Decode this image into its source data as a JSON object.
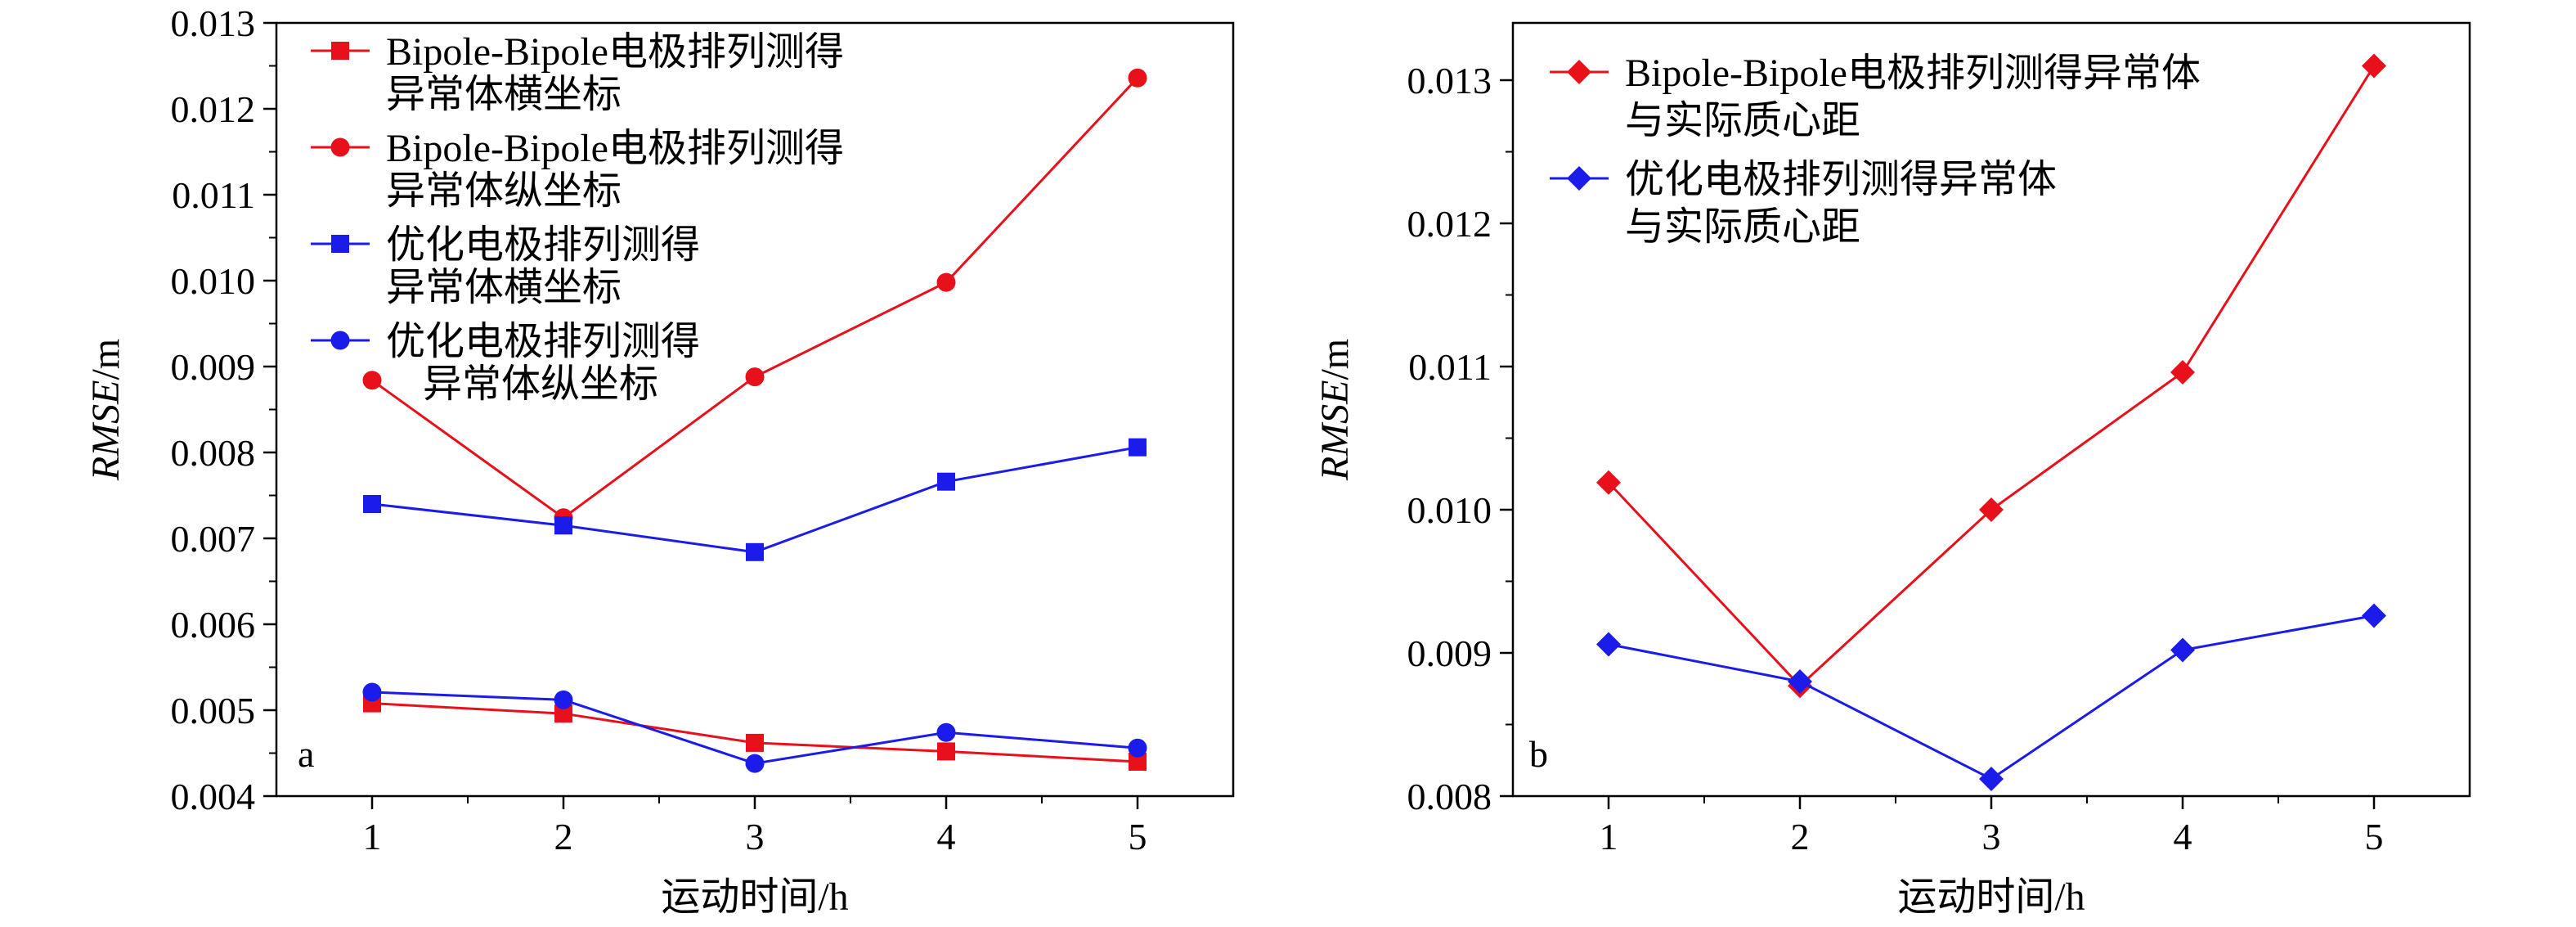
{
  "chart_data": [
    {
      "type": "line",
      "panel_label": "a",
      "xlabel": "运动时间/h",
      "ylabel_italic": "RMSE",
      "ylabel_unit": "/m",
      "x": [
        1,
        2,
        3,
        4,
        5
      ],
      "xlim": [
        0.5,
        5.5
      ],
      "ylim": [
        0.004,
        0.013
      ],
      "xticks": [
        1,
        2,
        3,
        4,
        5
      ],
      "yticks": [
        "0.004",
        "0.005",
        "0.006",
        "0.007",
        "0.008",
        "0.009",
        "0.010",
        "0.011",
        "0.012",
        "0.013"
      ],
      "legend_position": "top-left",
      "series": [
        {
          "name": "Bipole-Bipole电极排列测得异常体横坐标",
          "legend_lines": [
            "Bipole-Bipole电极排列测得",
            "异常体横坐标"
          ],
          "color": "#e8101a",
          "marker": "square",
          "values": [
            0.00508,
            0.00496,
            0.00462,
            0.00452,
            0.0044
          ]
        },
        {
          "name": "Bipole-Bipole电极排列测得异常体纵坐标",
          "legend_lines": [
            "Bipole-Bipole电极排列测得",
            "异常体纵坐标"
          ],
          "color": "#e8101a",
          "marker": "circle",
          "values": [
            0.00884,
            0.00724,
            0.00888,
            0.00998,
            0.01236
          ]
        },
        {
          "name": "优化电极排列测得异常体横坐标",
          "legend_lines": [
            "优化电极排列测得",
            "异常体横坐标"
          ],
          "color": "#1b1bea",
          "marker": "square",
          "values": [
            0.0074,
            0.00715,
            0.00684,
            0.00766,
            0.00806
          ]
        },
        {
          "name": "优化电极排列测得异常体纵坐标",
          "legend_lines": [
            "优化电极排列测得",
            "异常体纵坐标"
          ],
          "color": "#1b1bea",
          "marker": "circle",
          "values": [
            0.00521,
            0.00512,
            0.00438,
            0.00474,
            0.00456
          ]
        }
      ]
    },
    {
      "type": "line",
      "panel_label": "b",
      "xlabel": "运动时间/h",
      "ylabel_italic": "RMSE",
      "ylabel_unit": "/m",
      "x": [
        1,
        2,
        3,
        4,
        5
      ],
      "xlim": [
        0.5,
        5.5
      ],
      "ylim": [
        0.008,
        0.0134
      ],
      "xticks": [
        1,
        2,
        3,
        4,
        5
      ],
      "yticks": [
        "0.008",
        "0.009",
        "0.010",
        "0.011",
        "0.012",
        "0.013"
      ],
      "legend_position": "top-left",
      "series": [
        {
          "name": "Bipole-Bipole电极排列测得异常体与实际质心距",
          "legend_lines": [
            "Bipole-Bipole电极排列测得异常体",
            "与实际质心距"
          ],
          "color": "#e8101a",
          "marker": "diamond",
          "values": [
            0.01019,
            0.00877,
            0.01,
            0.01096,
            0.0131
          ]
        },
        {
          "name": "优化电极排列测得异常体与实际质心距",
          "legend_lines": [
            "优化电极排列测得异常体",
            "与实际质心距"
          ],
          "color": "#1b1bea",
          "marker": "diamond",
          "values": [
            0.00906,
            0.0088,
            0.00812,
            0.00902,
            0.00926
          ]
        }
      ]
    }
  ]
}
